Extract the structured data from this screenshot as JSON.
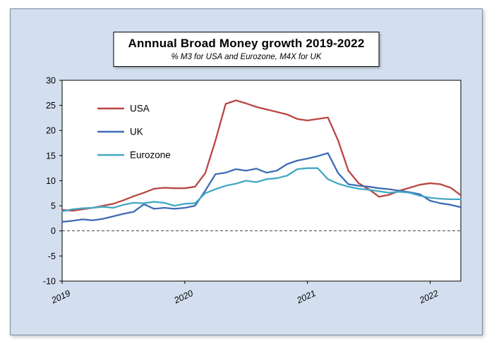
{
  "chart": {
    "title": "Annnual Broad Money growth 2019-2022",
    "subtitle": "% M3 for USA and Eurozone, M4X for UK"
  },
  "chart_data": {
    "type": "line",
    "title": "Annnual Broad Money growth 2019-2022",
    "subtitle": "% M3 for USA and Eurozone, M4X for UK",
    "x_unit": "month",
    "x_start": "2019-01",
    "x_end": "2022-04",
    "year_labels": [
      "2019",
      "2020",
      "2021",
      "2022"
    ],
    "year_tick_indices": [
      0,
      12,
      24,
      36
    ],
    "ylim": [
      -10,
      30
    ],
    "yticks": [
      30,
      25,
      20,
      15,
      10,
      5,
      0,
      -5,
      -10
    ],
    "grid": "zero-line-only",
    "legend_position": "top-left-inside",
    "series": [
      {
        "name": "USA",
        "color": "#b94642",
        "values": [
          4.2,
          4.0,
          4.3,
          4.6,
          5.0,
          5.4,
          6.1,
          6.9,
          7.6,
          8.4,
          8.6,
          8.5,
          8.5,
          8.8,
          11.5,
          18.0,
          25.3,
          26.0,
          25.4,
          24.7,
          24.2,
          23.7,
          23.2,
          22.3,
          22.0,
          22.3,
          22.6,
          18.0,
          12.0,
          9.5,
          8.3,
          6.8,
          7.2,
          8.0,
          8.6,
          9.2,
          9.5,
          9.3,
          8.6,
          7.1
        ]
      },
      {
        "name": "UK",
        "color": "#3e6cb5",
        "values": [
          1.8,
          2.0,
          2.3,
          2.1,
          2.4,
          2.9,
          3.4,
          3.8,
          5.3,
          4.4,
          4.6,
          4.4,
          4.6,
          5.0,
          8.0,
          11.3,
          11.6,
          12.3,
          12.0,
          12.4,
          11.6,
          12.0,
          13.3,
          14.0,
          14.4,
          14.9,
          15.5,
          11.5,
          9.3,
          9.0,
          8.8,
          8.5,
          8.3,
          8.0,
          7.7,
          7.3,
          6.0,
          5.5,
          5.2,
          4.7
        ]
      },
      {
        "name": "Eurozone",
        "color": "#43a8c3",
        "values": [
          3.9,
          4.3,
          4.5,
          4.6,
          4.8,
          4.6,
          5.2,
          5.6,
          5.5,
          5.8,
          5.6,
          5.0,
          5.4,
          5.5,
          7.5,
          8.3,
          9.0,
          9.4,
          10.0,
          9.7,
          10.3,
          10.5,
          11.0,
          12.3,
          12.5,
          12.5,
          10.3,
          9.4,
          8.8,
          8.4,
          8.2,
          7.9,
          7.6,
          7.8,
          7.6,
          7.0,
          6.6,
          6.4,
          6.3,
          6.3
        ]
      }
    ]
  },
  "colors": {
    "panel_background": "#d3dfee",
    "plot_background": "#ffffff",
    "axis": "#000000"
  }
}
